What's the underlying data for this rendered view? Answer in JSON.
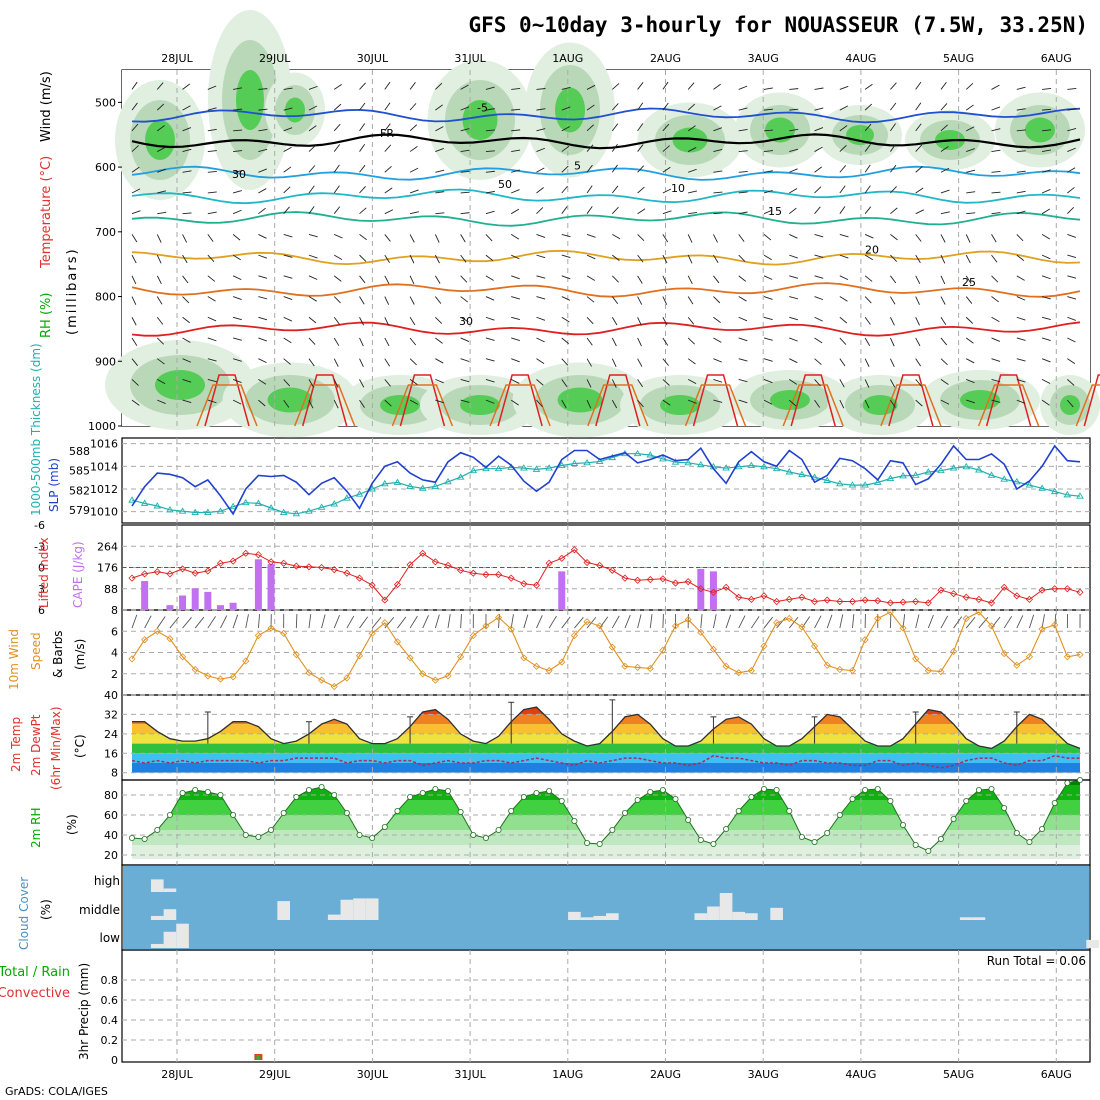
{
  "title": "GFS 0~10day 3-hourly for NOUASSEUR (7.5W, 33.25N)",
  "footer": "GrADS: COLA/IGES",
  "date_labels": [
    "28JUL",
    "29JUL",
    "30JUL",
    "31JUL",
    "1AUG",
    "2AUG",
    "3AUG",
    "4AUG",
    "5AUG",
    "6AUG"
  ],
  "colors": {
    "rh_green": "#00cc00",
    "temp_red": "#e02020",
    "cape": "#c070f0",
    "slp": "#2040d0",
    "thickness": "#20b0b0",
    "wind10": "#e09020",
    "cloud_bg": "#6aaed6"
  },
  "chart_data": [
    {
      "id": "cross-section",
      "type": "heatmap",
      "labels": {
        "wind": "Wind (m/s)",
        "temperature": "Temperature (°C)",
        "rh": "RH (%)",
        "pressure": "(millibars)"
      },
      "y_ticks": [
        "500",
        "600",
        "700",
        "800",
        "900",
        "1000"
      ],
      "ylim": [
        1000,
        450
      ],
      "isotherms": [
        {
          "label": "FR",
          "p": 560
        },
        {
          "label": "-5",
          "p": 520
        },
        {
          "label": "5",
          "p": 610
        },
        {
          "label": "10",
          "p": 645
        },
        {
          "label": "15",
          "p": 680
        },
        {
          "label": "20",
          "p": 740
        },
        {
          "label": "25",
          "p": 790
        },
        {
          "label": "30",
          "p": 850
        }
      ],
      "rh_labels": [
        "30",
        "50"
      ]
    },
    {
      "id": "slp-thickness",
      "type": "line",
      "labels": {
        "thickness": "1000-500mb Thickness (dm)",
        "slp": "SLP (mb)"
      },
      "thickness_ticks": [
        "588",
        "585",
        "582",
        "579"
      ],
      "slp_ticks": [
        "1016",
        "1014",
        "1012",
        "1010"
      ],
      "slp_ylim": [
        1009,
        1016.5
      ],
      "slp": [
        1010.5,
        1012.2,
        1013.4,
        1013.3,
        1013.0,
        1012.2,
        1012.8,
        1011.4,
        1009.8,
        1012.0,
        1013.2,
        1013.1,
        1013.2,
        1012.6,
        1011.5,
        1012.5,
        1013.0,
        1011.8,
        1010.3,
        1012.5,
        1014.0,
        1014.4,
        1013.4,
        1012.8,
        1012.6,
        1014.4,
        1015.2,
        1014.8,
        1013.9,
        1014.9,
        1014.1,
        1012.7,
        1011.8,
        1012.6,
        1014.6,
        1015.4,
        1015.4,
        1014.6,
        1014.9,
        1015.2,
        1014.3,
        1014.6,
        1015.0,
        1014.5,
        1014.6,
        1015.6,
        1013.8,
        1012.5,
        1014.4,
        1015.3,
        1014.4,
        1014.0,
        1015.4,
        1014.6,
        1012.6,
        1013.2,
        1014.7,
        1014.5,
        1013.8,
        1012.8,
        1014.5,
        1014.3,
        1012.4,
        1012.9,
        1014.2,
        1015.8,
        1014.6,
        1014.6,
        1015.1,
        1014.2,
        1012.0,
        1012.7,
        1014.0,
        1015.8,
        1014.5,
        1014.4
      ],
      "thickness": [
        580.5,
        580.0,
        579.6,
        579.0,
        578.8,
        578.6,
        578.6,
        578.8,
        579.5,
        580.1,
        580.0,
        579.3,
        578.6,
        578.4,
        578.8,
        579.4,
        579.9,
        580.8,
        581.4,
        582.2,
        583.0,
        583.2,
        582.6,
        582.3,
        582.6,
        583.3,
        584.0,
        585.0,
        585.3,
        585.3,
        585.5,
        585.4,
        585.2,
        585.4,
        585.8,
        586.1,
        586.2,
        586.4,
        587.0,
        587.6,
        587.6,
        587.4,
        586.8,
        586.3,
        586.2,
        585.9,
        585.6,
        585.4,
        585.6,
        585.8,
        585.6,
        585.3,
        584.8,
        584.4,
        584.0,
        583.5,
        583.0,
        582.8,
        582.8,
        583.2,
        583.8,
        584.2,
        584.3,
        584.8,
        585.0,
        585.4,
        585.6,
        585.1,
        584.3,
        583.7,
        583.3,
        582.8,
        582.3,
        581.8,
        581.3,
        581.1
      ]
    },
    {
      "id": "cape-lifted",
      "type": "bar",
      "labels": {
        "lifted": "Lifted Index",
        "cape": "CAPE (J/kg)"
      },
      "li_ticks": [
        "-6",
        "-3",
        "0",
        "3",
        "6"
      ],
      "cape_ticks": [
        "264",
        "176",
        "88"
      ],
      "li_ylim": [
        6,
        -6
      ],
      "lifted": [
        1.5,
        0.9,
        0.6,
        0.9,
        0.2,
        0.8,
        0.5,
        -0.6,
        -0.9,
        -2.0,
        -1.8,
        -0.8,
        -0.6,
        -0.2,
        -0.1,
        0.0,
        0.3,
        0.8,
        1.5,
        2.5,
        4.6,
        2.4,
        -0.4,
        -2.0,
        -0.8,
        -0.3,
        0.4,
        0.8,
        1.0,
        1.0,
        1.5,
        2.3,
        2.5,
        -0.6,
        -1.3,
        -2.5,
        -0.7,
        -0.3,
        0.4,
        1.5,
        1.8,
        1.7,
        1.6,
        2.2,
        2.0,
        3.0,
        3.5,
        2.8,
        4.2,
        4.5,
        4.0,
        4.8,
        4.5,
        4.2,
        4.8,
        4.6,
        4.8,
        4.8,
        4.6,
        4.7,
        5.0,
        4.9,
        4.8,
        5.0,
        3.2,
        3.7,
        4.2,
        4.5,
        5.0,
        2.8,
        4.0,
        4.5,
        3.2,
        3.0,
        3.0,
        3.5
      ],
      "cape_times": [
        1,
        3,
        4,
        5,
        6,
        7,
        8,
        10,
        11,
        12,
        12,
        12,
        34,
        45,
        46,
        48,
        48,
        52,
        60,
        64,
        66,
        68,
        72,
        74
      ],
      "cape": [
        120,
        20,
        60,
        90,
        75,
        20,
        30,
        210,
        190,
        0,
        0,
        0,
        160,
        170,
        160,
        0,
        0,
        0,
        0,
        0,
        0,
        0,
        0,
        0
      ]
    },
    {
      "id": "wind10m",
      "type": "line",
      "labels": {
        "title": "10m Wind",
        "speed": "Speed",
        "barbs": "& Barbs",
        "unit": "(m/s)"
      },
      "y_ticks": [
        "8",
        "6",
        "4",
        "2"
      ],
      "ylim": [
        0,
        8
      ],
      "speed": [
        3.4,
        5.2,
        6.0,
        5.3,
        3.6,
        2.4,
        1.8,
        1.5,
        1.7,
        3.2,
        5.6,
        6.3,
        5.8,
        3.8,
        2.1,
        1.4,
        0.8,
        1.6,
        3.7,
        5.8,
        6.8,
        5.0,
        3.5,
        2.0,
        1.4,
        1.8,
        3.6,
        5.6,
        6.5,
        7.3,
        6.2,
        3.5,
        2.7,
        2.3,
        3.1,
        5.6,
        6.9,
        6.5,
        4.5,
        2.7,
        2.6,
        2.5,
        4.2,
        6.5,
        7.1,
        5.9,
        4.3,
        2.7,
        2.1,
        2.3,
        4.6,
        6.8,
        7.2,
        6.4,
        4.6,
        2.8,
        2.4,
        2.3,
        5.2,
        7.2,
        7.8,
        6.3,
        3.4,
        2.3,
        2.2,
        4.1,
        7.2,
        7.8,
        6.5,
        3.9,
        2.8,
        3.6,
        6.2,
        6.6,
        3.6,
        3.8
      ]
    },
    {
      "id": "temp2m",
      "type": "area",
      "labels": {
        "line1": "2m Temp",
        "line2": "2m DewPt",
        "line3": "(6hr Min/Max)",
        "unit": "(°C)"
      },
      "y_ticks": [
        "40",
        "32",
        "24",
        "16",
        "8"
      ],
      "ylim": [
        5,
        40
      ],
      "temp": [
        29,
        29,
        25,
        22,
        21,
        21,
        22,
        25,
        29,
        29,
        27,
        22,
        20,
        21,
        24,
        28,
        30,
        28,
        22,
        20,
        20,
        22,
        27,
        33,
        34,
        30,
        24,
        21,
        20,
        23,
        29,
        34,
        35,
        30,
        24,
        21,
        19,
        20,
        25,
        31,
        32,
        28,
        22,
        19,
        19,
        21,
        26,
        30,
        31,
        28,
        22,
        19,
        19,
        22,
        27,
        32,
        31,
        26,
        21,
        19,
        19,
        22,
        28,
        34,
        33,
        28,
        22,
        19,
        18,
        21,
        27,
        32,
        30,
        25,
        20,
        18
      ],
      "dewpt": [
        13,
        12,
        13,
        12,
        13,
        12,
        13,
        13,
        13,
        13,
        12,
        13,
        13,
        14,
        14,
        14,
        14,
        12,
        13,
        13,
        12,
        13,
        13,
        11,
        12,
        13,
        12,
        12,
        13,
        13,
        12,
        13,
        14,
        13,
        12,
        11,
        13,
        12,
        13,
        14,
        14,
        13,
        12,
        12,
        11,
        12,
        15,
        14,
        14,
        13,
        12,
        12,
        11,
        13,
        13,
        12,
        12,
        11,
        11,
        13,
        13,
        11,
        12,
        11,
        10,
        11,
        13,
        14,
        14,
        12,
        11,
        13,
        13,
        15,
        14,
        14
      ],
      "max_times": [
        6,
        14,
        22,
        30,
        38,
        46,
        54,
        62,
        70
      ],
      "max_values": [
        33,
        29,
        31,
        37,
        38,
        31,
        31,
        33,
        33
      ]
    },
    {
      "id": "rh2m",
      "type": "area",
      "labels": {
        "title": "2m RH",
        "unit": "(%)"
      },
      "y_ticks": [
        "80",
        "60",
        "40",
        "20"
      ],
      "ylim": [
        10,
        95
      ],
      "rh": [
        37,
        36,
        45,
        60,
        82,
        85,
        83,
        80,
        60,
        40,
        38,
        45,
        62,
        78,
        85,
        88,
        80,
        62,
        40,
        37,
        48,
        64,
        78,
        82,
        86,
        84,
        63,
        40,
        37,
        45,
        64,
        78,
        82,
        84,
        74,
        54,
        32,
        31,
        45,
        62,
        75,
        83,
        85,
        76,
        55,
        35,
        31,
        46,
        64,
        78,
        86,
        85,
        64,
        38,
        33,
        42,
        60,
        76,
        85,
        86,
        74,
        50,
        30,
        24,
        36,
        56,
        74,
        85,
        86,
        67,
        42,
        33,
        46,
        72,
        92,
        95
      ]
    },
    {
      "id": "cloud",
      "type": "bar",
      "labels": {
        "title": "Cloud Cover",
        "unit": "(%)",
        "high": "high",
        "middle": "middle",
        "low": "low"
      },
      "high": [
        [
          2,
          0.9
        ],
        [
          3,
          0.25
        ]
      ],
      "middle": [
        [
          2,
          0.15
        ],
        [
          3,
          0.4
        ],
        [
          12,
          0.7
        ],
        [
          16,
          0.2
        ],
        [
          17,
          0.75
        ],
        [
          18,
          0.8
        ],
        [
          19,
          0.8
        ],
        [
          35,
          0.3
        ],
        [
          36,
          0.1
        ],
        [
          37,
          0.15
        ],
        [
          38,
          0.25
        ],
        [
          45,
          0.25
        ],
        [
          46,
          0.5
        ],
        [
          47,
          1.0
        ],
        [
          48,
          0.3
        ],
        [
          49,
          0.25
        ],
        [
          51,
          0.45
        ],
        [
          66,
          0.1
        ],
        [
          67,
          0.1
        ]
      ],
      "low": [
        [
          2,
          0.15
        ],
        [
          3,
          0.6
        ],
        [
          4,
          0.9
        ],
        [
          76,
          0.3
        ]
      ]
    },
    {
      "id": "precip",
      "type": "bar",
      "labels": {
        "total": "Total / Rain",
        "convective": "Convective",
        "precip": "3hr Precip (mm)",
        "run_total": "Run Total = 0.06"
      },
      "y_ticks": [
        "0.8",
        "0.6",
        "0.4",
        "0.2",
        "0"
      ],
      "ylim": [
        0,
        1
      ],
      "precip": [
        [
          10,
          0.06
        ]
      ]
    }
  ]
}
